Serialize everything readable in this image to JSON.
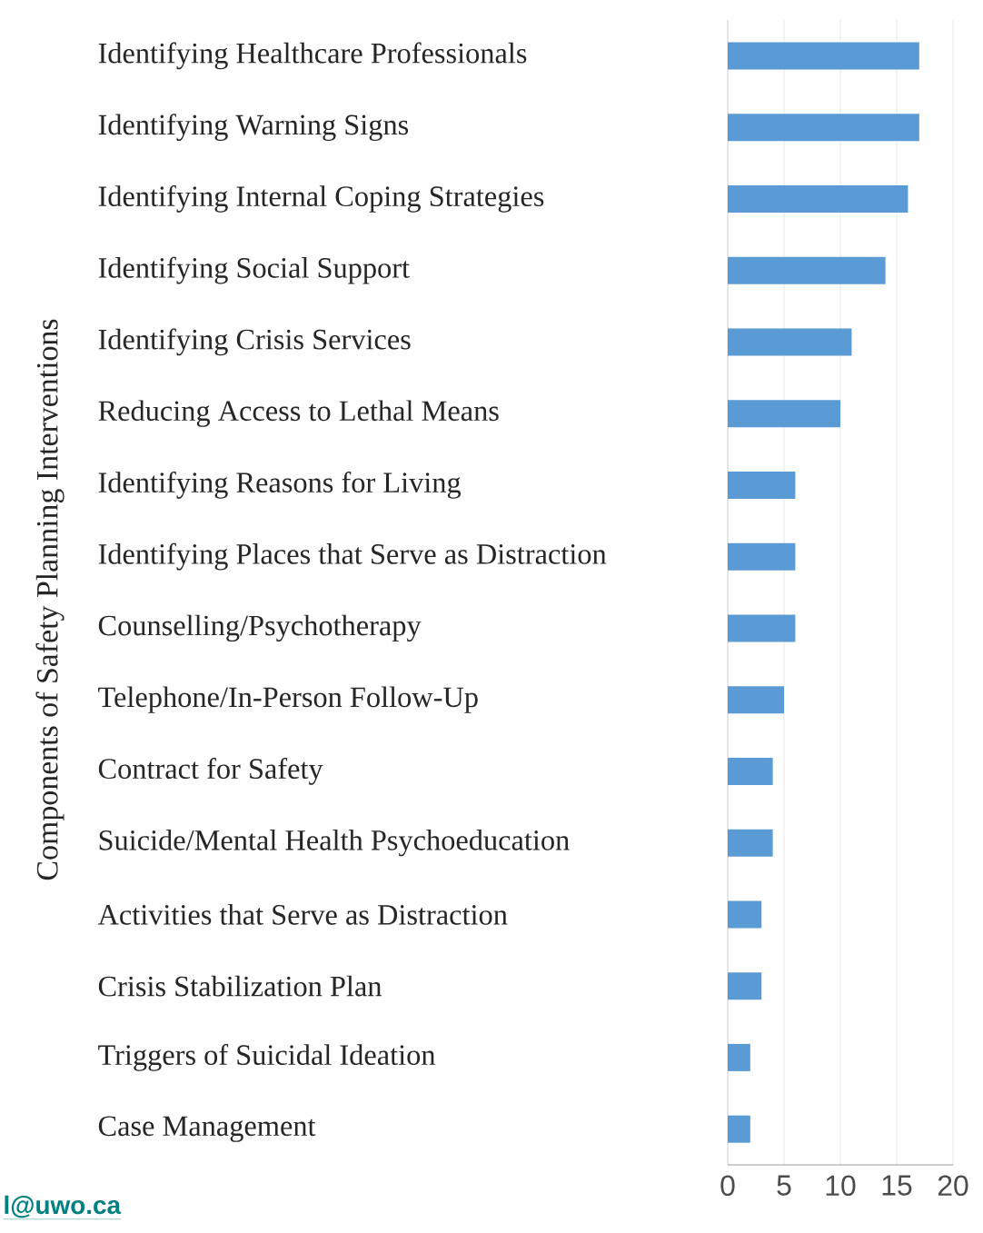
{
  "chart_data": {
    "type": "bar",
    "orientation": "horizontal",
    "ylabel": "Components of Safety Planning Interventions",
    "categories": [
      "Identifying Healthcare Professionals",
      "Identifying Warning Signs",
      "Identifying Internal Coping Strategies",
      "Identifying Social Support",
      "Identifying Crisis Services",
      "Reducing Access to Lethal Means",
      "Identifying Reasons for Living",
      "Identifying Places that Serve as Distraction",
      "Counselling/Psychotherapy",
      "Telephone/In-Person Follow-Up",
      "Contract for Safety",
      "Suicide/Mental Health Psychoeducation",
      "Activities that Serve as Distraction",
      "Crisis Stabilization Plan",
      "Triggers of Suicidal Ideation",
      "Case Management"
    ],
    "values": [
      17,
      17,
      16,
      14,
      11,
      10,
      6,
      6,
      6,
      5,
      4,
      4,
      3,
      3,
      2,
      2
    ],
    "color": "#5b9bd5",
    "xlim": [
      0,
      20
    ],
    "xticks": [
      0,
      5,
      10,
      15,
      20
    ],
    "grid": "x",
    "annotations": [
      "l@uwo.ca"
    ]
  }
}
